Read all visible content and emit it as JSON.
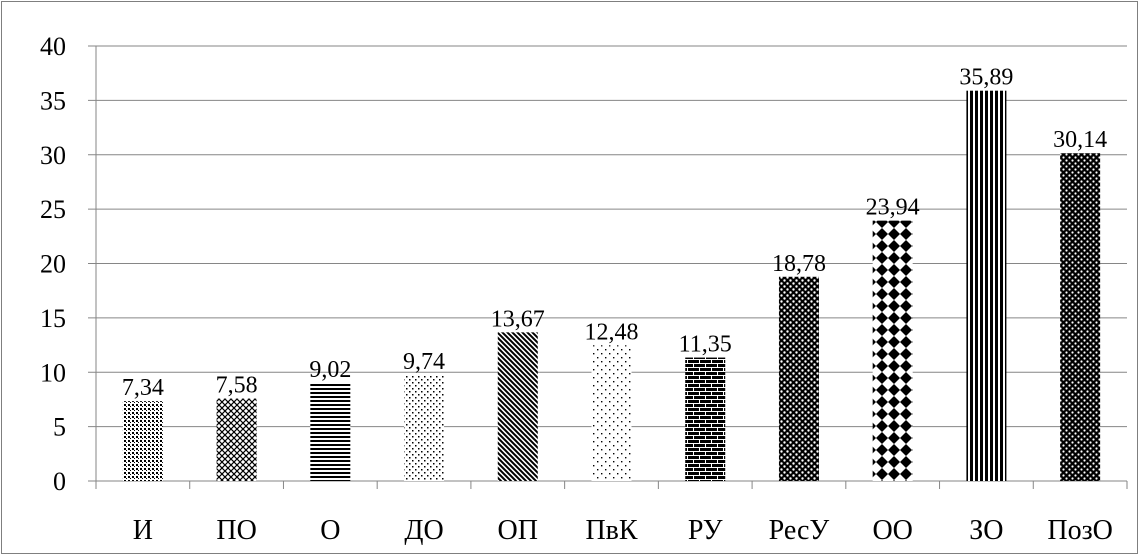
{
  "chart_data": {
    "type": "bar",
    "categories": [
      "И",
      "ПО",
      "О",
      "ДО",
      "ОП",
      "ПвК",
      "РУ",
      "РесУ",
      "ОО",
      "ЗО",
      "ПозО"
    ],
    "values": [
      7.34,
      7.58,
      9.02,
      9.74,
      13.67,
      12.48,
      11.35,
      18.78,
      23.94,
      35.89,
      30.14
    ],
    "value_labels": [
      "7,34",
      "7,58",
      "9,02",
      "9,74",
      "13,67",
      "12,48",
      "11,35",
      "18,78",
      "23,94",
      "35,89",
      "30,14"
    ],
    "patterns": [
      "dense-dots",
      "crosshatch",
      "horizontal-lines",
      "sparse-dots",
      "diagonal-lines",
      "light-dots",
      "brick",
      "checker-dots",
      "diamonds",
      "vertical-lines",
      "polka-dots"
    ],
    "ylim": [
      0,
      40
    ],
    "yticks": [
      0,
      5,
      10,
      15,
      20,
      25,
      30,
      35,
      40
    ],
    "grid": true,
    "legend": "none",
    "colors": {
      "bar": "#000000",
      "grid": "#868686",
      "axis": "#868686",
      "frame": "#7f7f7f"
    }
  }
}
